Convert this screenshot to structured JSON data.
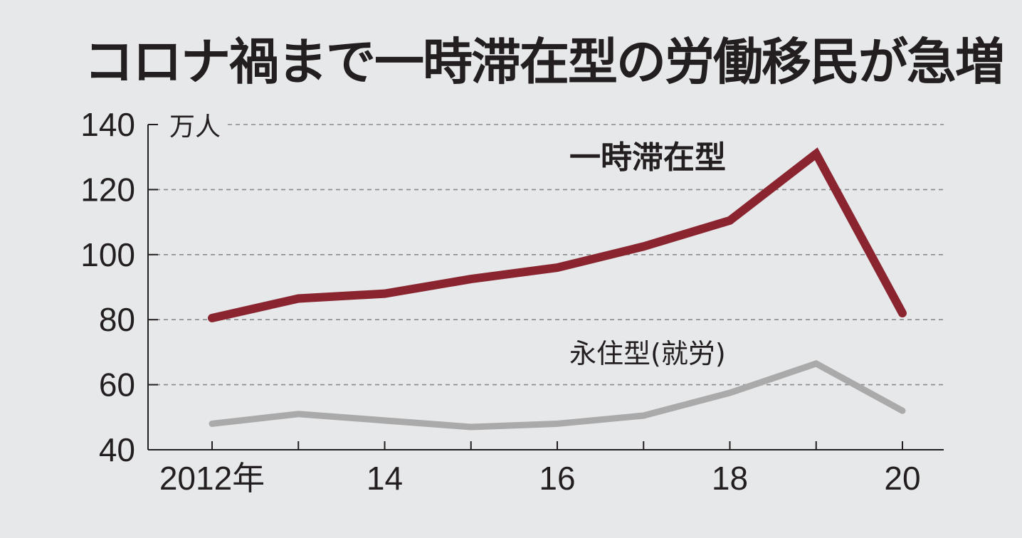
{
  "title": "コロナ禍まで一時滞在型の労働移民が急増",
  "chart_data": {
    "type": "line",
    "title": "コロナ禍まで一時滞在型の労働移民が急増",
    "unit_label": "万人",
    "x": [
      2012,
      2013,
      2014,
      2015,
      2016,
      2017,
      2018,
      2019,
      2020
    ],
    "x_tick_labels": [
      {
        "x": 2012,
        "label": "2012年"
      },
      {
        "x": 2014,
        "label": "14"
      },
      {
        "x": 2016,
        "label": "16"
      },
      {
        "x": 2018,
        "label": "18"
      },
      {
        "x": 2020,
        "label": "20"
      }
    ],
    "ylim": [
      40,
      140
    ],
    "y_ticks": [
      40,
      60,
      80,
      100,
      120,
      140
    ],
    "grid": "horizontal dashed",
    "series": [
      {
        "name": "一時滞在型",
        "color": "#8a2530",
        "values": [
          80.5,
          86.5,
          88,
          92.5,
          96,
          102.5,
          110.5,
          131,
          82
        ]
      },
      {
        "name": "永住型(就労)",
        "color": "#aaaaaa",
        "values": [
          48,
          51,
          49,
          47,
          48,
          50.5,
          57.5,
          66.5,
          52
        ]
      }
    ]
  }
}
